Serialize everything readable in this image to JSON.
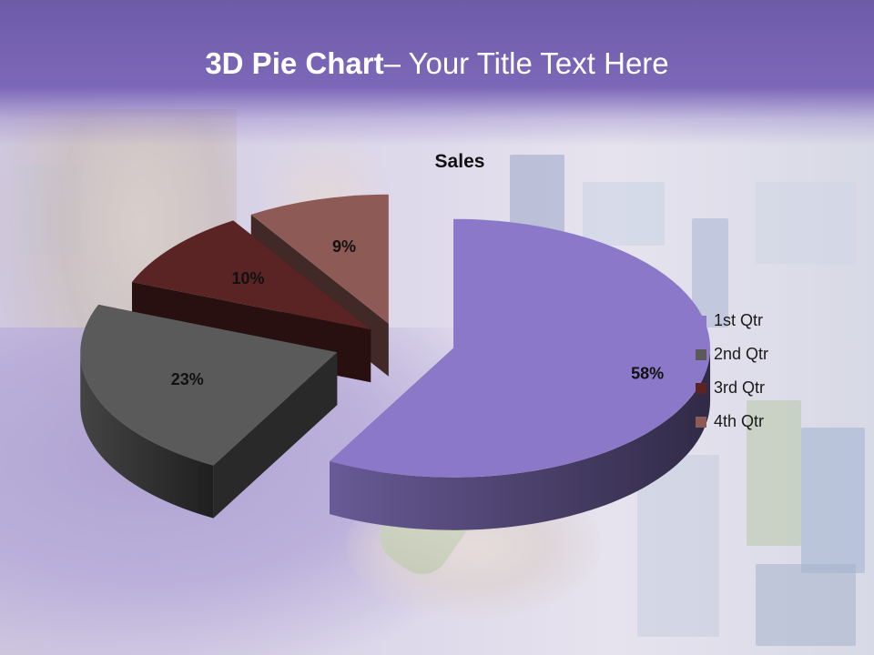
{
  "header": {
    "title_bold": "3D Pie Chart",
    "title_rest": "– Your Title Text Here"
  },
  "chart_data": {
    "type": "pie",
    "title": "Sales",
    "categories": [
      "1st Qtr",
      "2nd Qtr",
      "3rd Qtr",
      "4th Qtr"
    ],
    "values": [
      58,
      23,
      10,
      9
    ],
    "data_labels": [
      "58%",
      "23%",
      "10%",
      "9%"
    ],
    "colors": [
      "#8b78c8",
      "#5a5a5a",
      "#5a2424",
      "#8e5a56"
    ],
    "legend_position": "right",
    "style": "3d-exploded"
  }
}
